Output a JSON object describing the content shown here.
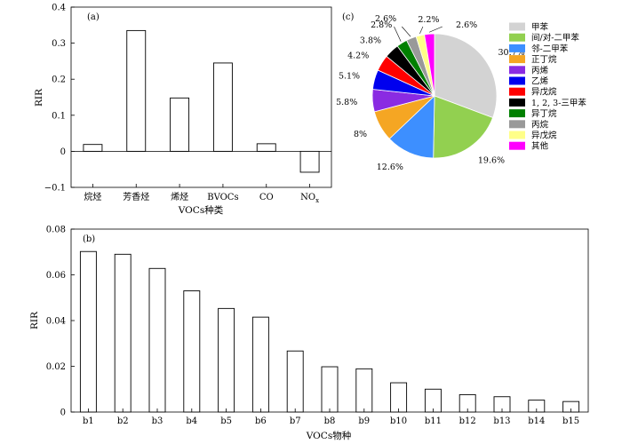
{
  "chart_data": [
    {
      "panel": "(a)",
      "type": "bar",
      "categories": [
        "烷烃",
        "芳香烃",
        "烯烃",
        "BVOCs",
        "CO",
        "NOx"
      ],
      "values": [
        0.019,
        0.335,
        0.148,
        0.245,
        0.021,
        -0.058
      ],
      "ylabel": "RIR",
      "xlabel": "VOCs种类",
      "ylim": [
        -0.1,
        0.4
      ],
      "yticks": [
        "−0.1",
        "0",
        "0.1",
        "0.2",
        "0.3",
        "0.4"
      ],
      "grid": false
    },
    {
      "panel": "(c)",
      "type": "pie",
      "slices": [
        {
          "label": "甲苯",
          "value": 30.7,
          "pct": "30.7%",
          "color": "#d3d3d3"
        },
        {
          "label": "间/对-二甲苯",
          "value": 19.6,
          "pct": "19.6%",
          "color": "#92d050"
        },
        {
          "label": "邻-二甲苯",
          "value": 12.6,
          "pct": "12.6%",
          "color": "#3d8fff"
        },
        {
          "label": "正丁烷",
          "value": 8,
          "pct": "8%",
          "color": "#f5a623"
        },
        {
          "label": "丙烯",
          "value": 5.8,
          "pct": "5.8%",
          "color": "#8a2be2"
        },
        {
          "label": "乙烯",
          "value": 5.1,
          "pct": "5.1%",
          "color": "#0000ee"
        },
        {
          "label": "异戊烷",
          "value": 4.2,
          "pct": "4.2%",
          "color": "#ff0000"
        },
        {
          "label": "1, 2, 3-三甲苯",
          "value": 3.8,
          "pct": "3.8%",
          "color": "#000000"
        },
        {
          "label": "异丁烷",
          "value": 2.8,
          "pct": "2.8%",
          "color": "#008000"
        },
        {
          "label": "丙烷",
          "value": 2.6,
          "pct": "2.6%",
          "color": "#999999"
        },
        {
          "label": "异戊烷",
          "value": 2.2,
          "pct": "2.2%",
          "color": "#ffff88"
        },
        {
          "label": "其他",
          "value": 2.6,
          "pct": "2.6%",
          "color": "#ff00ff"
        }
      ],
      "legend_position": "right"
    },
    {
      "panel": "(b)",
      "type": "bar",
      "categories": [
        "b1",
        "b2",
        "b3",
        "b4",
        "b5",
        "b6",
        "b7",
        "b8",
        "b9",
        "b10",
        "b11",
        "b12",
        "b13",
        "b14",
        "b15"
      ],
      "values": [
        0.0702,
        0.069,
        0.0628,
        0.053,
        0.0453,
        0.0415,
        0.0267,
        0.0198,
        0.0189,
        0.0128,
        0.01,
        0.0076,
        0.0067,
        0.0052,
        0.0046
      ],
      "ylabel": "RIR",
      "xlabel": "VOCs物种",
      "ylim": [
        0,
        0.08
      ],
      "yticks": [
        "0",
        "0.02",
        "0.04",
        "0.06",
        "0.08"
      ],
      "grid": false
    }
  ]
}
